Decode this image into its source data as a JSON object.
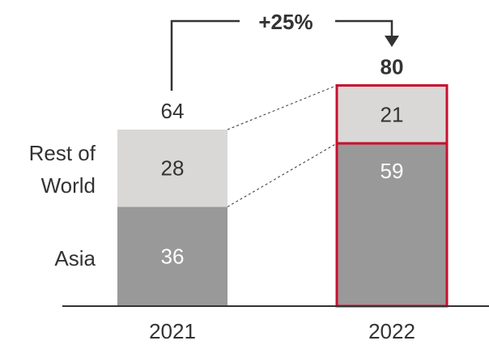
{
  "chart_data": {
    "type": "bar",
    "stacked": true,
    "categories": [
      "2021",
      "2022"
    ],
    "series": [
      {
        "name": "Asia",
        "values": [
          36,
          59
        ]
      },
      {
        "name": "Rest of World",
        "values": [
          28,
          21
        ]
      }
    ],
    "totals": [
      "64",
      "80"
    ],
    "series_labels": {
      "asia": "Asia",
      "row_line1": "Rest of",
      "row_line2": "World"
    },
    "growth_label": "+25%",
    "colors": {
      "asia": "#999999",
      "rest": "#d9d8d6",
      "highlight": "#c8102e",
      "axis": "#333333"
    }
  }
}
